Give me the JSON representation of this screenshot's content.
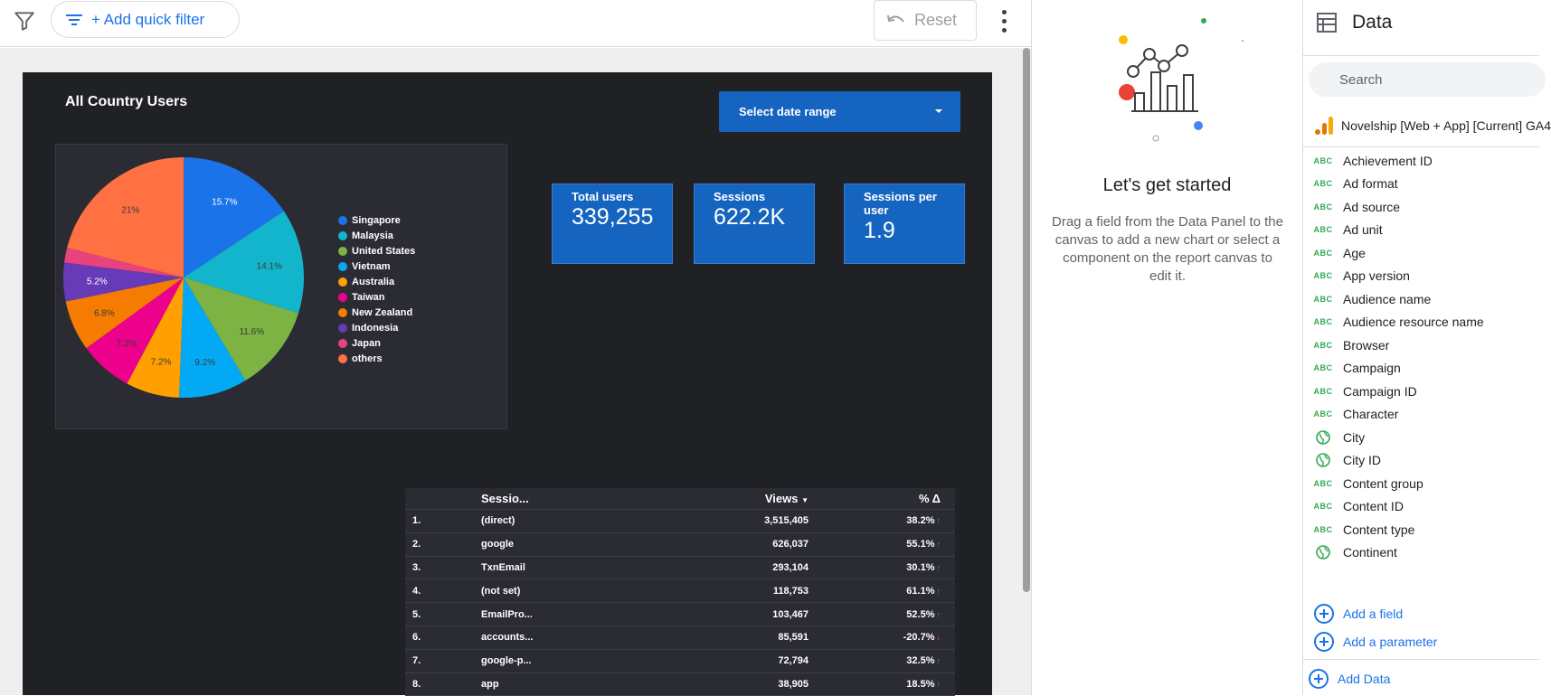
{
  "toolbar": {
    "add_quick_filter": "+ Add quick filter",
    "reset": "Reset"
  },
  "report": {
    "title": "All Country Users",
    "date_range": "Select date range",
    "kpis": [
      {
        "label": "Total users",
        "value": "339,255"
      },
      {
        "label": "Sessions",
        "value": "622.2K"
      },
      {
        "label": "Sessions per user",
        "value": "1.9"
      }
    ]
  },
  "chart_data": {
    "type": "pie",
    "title": "",
    "slices": [
      {
        "label": "Singapore",
        "value": 15.7,
        "text": "15.7%",
        "color": "#1a73e8"
      },
      {
        "label": "Malaysia",
        "value": 14.1,
        "text": "14.1%",
        "color": "#12b5cb"
      },
      {
        "label": "United States",
        "value": 11.6,
        "text": "11.6%",
        "color": "#7cb342"
      },
      {
        "label": "Vietnam",
        "value": 9.2,
        "text": "9.2%",
        "color": "#03a9f4"
      },
      {
        "label": "Australia",
        "value": 7.2,
        "text": "7.2%",
        "color": "#ffa000"
      },
      {
        "label": "Taiwan",
        "value": 7.2,
        "text": "7.2%",
        "color": "#ec008c"
      },
      {
        "label": "New Zealand",
        "value": 6.8,
        "text": "6.8%",
        "color": "#f57c00"
      },
      {
        "label": "Indonesia",
        "value": 5.2,
        "text": "5.2%",
        "color": "#673ab7"
      },
      {
        "label": "Japan",
        "value": 2.0,
        "text": "",
        "color": "#e8437a"
      },
      {
        "label": "others",
        "value": 21.0,
        "text": "21%",
        "color": "#ff7043"
      }
    ],
    "legend_position": "right"
  },
  "table": {
    "headers": {
      "name": "Sessio...",
      "views": "Views",
      "pct": "% Δ"
    },
    "rows": [
      {
        "idx": "1.",
        "name": "(direct)",
        "views": "3,515,405",
        "pct": "38.2%",
        "dir": "up"
      },
      {
        "idx": "2.",
        "name": "google",
        "views": "626,037",
        "pct": "55.1%",
        "dir": "up"
      },
      {
        "idx": "3.",
        "name": "TxnEmail",
        "views": "293,104",
        "pct": "30.1%",
        "dir": "up"
      },
      {
        "idx": "4.",
        "name": "(not set)",
        "views": "118,753",
        "pct": "61.1%",
        "dir": "up"
      },
      {
        "idx": "5.",
        "name": "EmailPro...",
        "views": "103,467",
        "pct": "52.5%",
        "dir": "up"
      },
      {
        "idx": "6.",
        "name": "accounts...",
        "views": "85,591",
        "pct": "-20.7%",
        "dir": "down"
      },
      {
        "idx": "7.",
        "name": "google-p...",
        "views": "72,794",
        "pct": "32.5%",
        "dir": "up"
      },
      {
        "idx": "8.",
        "name": "app",
        "views": "38,905",
        "pct": "18.5%",
        "dir": "up"
      }
    ]
  },
  "getstarted": {
    "title": "Let's get started",
    "text": "Drag a field from the Data Panel to the canvas to add a new chart or select a component on the report canvas to edit it."
  },
  "datapanel": {
    "title": "Data",
    "search_placeholder": "Search",
    "source": "Novelship [Web + App] [Current] GA4",
    "fields": [
      {
        "name": "Achievement ID",
        "icon": "abc"
      },
      {
        "name": "Ad format",
        "icon": "abc"
      },
      {
        "name": "Ad source",
        "icon": "abc"
      },
      {
        "name": "Ad unit",
        "icon": "abc"
      },
      {
        "name": "Age",
        "icon": "abc"
      },
      {
        "name": "App version",
        "icon": "abc"
      },
      {
        "name": "Audience name",
        "icon": "abc"
      },
      {
        "name": "Audience resource name",
        "icon": "abc"
      },
      {
        "name": "Browser",
        "icon": "abc"
      },
      {
        "name": "Campaign",
        "icon": "abc"
      },
      {
        "name": "Campaign ID",
        "icon": "abc"
      },
      {
        "name": "Character",
        "icon": "abc"
      },
      {
        "name": "City",
        "icon": "globe"
      },
      {
        "name": "City ID",
        "icon": "globe"
      },
      {
        "name": "Content group",
        "icon": "abc"
      },
      {
        "name": "Content ID",
        "icon": "abc"
      },
      {
        "name": "Content type",
        "icon": "abc"
      },
      {
        "name": "Continent",
        "icon": "globe"
      }
    ],
    "abc_label": "ABC",
    "add_field": "Add a field",
    "add_parameter": "Add a parameter",
    "add_data": "Add Data"
  }
}
